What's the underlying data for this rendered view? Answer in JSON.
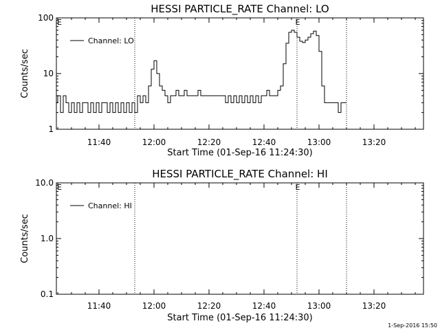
{
  "footer_timestamp": "1-Sep-2016 15:50",
  "chart_data": [
    {
      "type": "line",
      "title": "HESSI PARTICLE_RATE Channel: LO",
      "xlabel": "Start Time (01-Sep-16 11:24:30)",
      "ylabel": "Counts/sec",
      "x_unit": "minutes",
      "xlim": [
        "11:24:30",
        "13:38:00"
      ],
      "x_ticks": [
        "11:40",
        "12:00",
        "12:20",
        "12:40",
        "13:00",
        "13:20"
      ],
      "y_scale": "log",
      "ylim": [
        1,
        100
      ],
      "y_ticks": [
        "1",
        "10",
        "100"
      ],
      "legend": {
        "position": "top-left",
        "entries": [
          "Channel: LO"
        ]
      },
      "grid": false,
      "markers": [
        {
          "type": "vline",
          "x": "11:53"
        },
        {
          "type": "vline",
          "x": "12:52",
          "label": "E"
        },
        {
          "type": "vline",
          "x": "13:10"
        }
      ],
      "corner_labels": [
        "E"
      ],
      "series": [
        {
          "name": "Channel: LO",
          "points": [
            [
              "11:24:30",
              3
            ],
            [
              "11:25",
              4
            ],
            [
              "11:26",
              2
            ],
            [
              "11:27",
              4
            ],
            [
              "11:28",
              3
            ],
            [
              "11:29",
              2
            ],
            [
              "11:30",
              3
            ],
            [
              "11:31",
              2
            ],
            [
              "11:32",
              3
            ],
            [
              "11:33",
              2
            ],
            [
              "11:34",
              3
            ],
            [
              "11:35",
              3
            ],
            [
              "11:36",
              2
            ],
            [
              "11:37",
              3
            ],
            [
              "11:38",
              2
            ],
            [
              "11:39",
              3
            ],
            [
              "11:40",
              2
            ],
            [
              "11:41",
              3
            ],
            [
              "11:42",
              3
            ],
            [
              "11:43",
              2
            ],
            [
              "11:44",
              3
            ],
            [
              "11:45",
              2
            ],
            [
              "11:46",
              3
            ],
            [
              "11:47",
              2
            ],
            [
              "11:48",
              3
            ],
            [
              "11:49",
              2
            ],
            [
              "11:50",
              3
            ],
            [
              "11:51",
              2
            ],
            [
              "11:52",
              3
            ],
            [
              "11:53",
              2
            ],
            [
              "11:54",
              4
            ],
            [
              "11:55",
              3
            ],
            [
              "11:56",
              4
            ],
            [
              "11:57",
              3
            ],
            [
              "11:58",
              6
            ],
            [
              "11:59",
              12
            ],
            [
              "12:00",
              17
            ],
            [
              "12:01",
              10
            ],
            [
              "12:02",
              6
            ],
            [
              "12:03",
              5
            ],
            [
              "12:04",
              4
            ],
            [
              "12:05",
              3
            ],
            [
              "12:06",
              4
            ],
            [
              "12:07",
              4
            ],
            [
              "12:08",
              5
            ],
            [
              "12:09",
              4
            ],
            [
              "12:10",
              4
            ],
            [
              "12:11",
              5
            ],
            [
              "12:12",
              4
            ],
            [
              "12:13",
              4
            ],
            [
              "12:14",
              4
            ],
            [
              "12:15",
              4
            ],
            [
              "12:16",
              5
            ],
            [
              "12:17",
              4
            ],
            [
              "12:18",
              4
            ],
            [
              "12:19",
              4
            ],
            [
              "12:20",
              4
            ],
            [
              "12:21",
              4
            ],
            [
              "12:22",
              4
            ],
            [
              "12:23",
              4
            ],
            [
              "12:24",
              4
            ],
            [
              "12:25",
              4
            ],
            [
              "12:26",
              3
            ],
            [
              "12:27",
              4
            ],
            [
              "12:28",
              3
            ],
            [
              "12:29",
              4
            ],
            [
              "12:30",
              3
            ],
            [
              "12:31",
              4
            ],
            [
              "12:32",
              3
            ],
            [
              "12:33",
              4
            ],
            [
              "12:34",
              3
            ],
            [
              "12:35",
              4
            ],
            [
              "12:36",
              3
            ],
            [
              "12:37",
              4
            ],
            [
              "12:38",
              3
            ],
            [
              "12:39",
              4
            ],
            [
              "12:40",
              4
            ],
            [
              "12:41",
              5
            ],
            [
              "12:42",
              4
            ],
            [
              "12:43",
              4
            ],
            [
              "12:44",
              4
            ],
            [
              "12:45",
              5
            ],
            [
              "12:46",
              6
            ],
            [
              "12:47",
              15
            ],
            [
              "12:48",
              35
            ],
            [
              "12:49",
              55
            ],
            [
              "12:50",
              60
            ],
            [
              "12:51",
              55
            ],
            [
              "12:52",
              45
            ],
            [
              "12:53",
              38
            ],
            [
              "12:54",
              36
            ],
            [
              "12:55",
              40
            ],
            [
              "12:56",
              45
            ],
            [
              "12:57",
              52
            ],
            [
              "12:58",
              58
            ],
            [
              "12:59",
              48
            ],
            [
              "13:00",
              25
            ],
            [
              "13:01",
              6
            ],
            [
              "13:02",
              3
            ],
            [
              "13:03",
              3
            ],
            [
              "13:04",
              3
            ],
            [
              "13:05",
              3
            ],
            [
              "13:06",
              3
            ],
            [
              "13:07",
              2
            ],
            [
              "13:08",
              3
            ],
            [
              "13:09",
              3
            ],
            [
              "13:10",
              3
            ]
          ]
        }
      ]
    },
    {
      "type": "line",
      "title": "HESSI PARTICLE_RATE Channel: HI",
      "xlabel": "Start Time (01-Sep-16 11:24:30)",
      "ylabel": "Counts/sec",
      "x_unit": "minutes",
      "xlim": [
        "11:24:30",
        "13:38:00"
      ],
      "x_ticks": [
        "11:40",
        "12:00",
        "12:20",
        "12:40",
        "13:00",
        "13:20"
      ],
      "y_scale": "log",
      "ylim": [
        0.1,
        10
      ],
      "y_ticks": [
        "0.1",
        "1.0",
        "10.0"
      ],
      "legend": {
        "position": "top-left",
        "entries": [
          "Channel: HI"
        ]
      },
      "grid": false,
      "markers": [
        {
          "type": "vline",
          "x": "11:53"
        },
        {
          "type": "vline",
          "x": "12:52",
          "label": "E"
        },
        {
          "type": "vline",
          "x": "13:10"
        }
      ],
      "corner_labels": [
        "E"
      ],
      "series": [
        {
          "name": "Channel: HI",
          "points": []
        }
      ]
    }
  ]
}
